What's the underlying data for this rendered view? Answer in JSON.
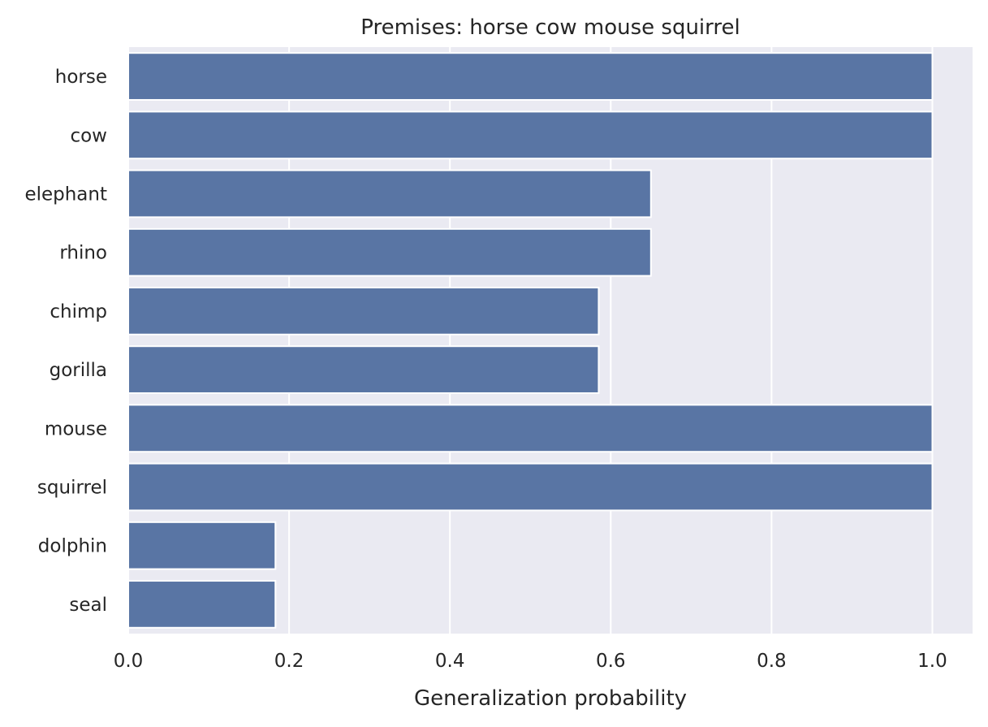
{
  "chart_data": {
    "type": "bar",
    "orientation": "horizontal",
    "title": "Premises: horse cow mouse squirrel",
    "xlabel": "Generalization probability",
    "ylabel": "",
    "categories": [
      "horse",
      "cow",
      "elephant",
      "rhino",
      "chimp",
      "gorilla",
      "mouse",
      "squirrel",
      "dolphin",
      "seal"
    ],
    "values": [
      1.0,
      1.0,
      0.65,
      0.65,
      0.585,
      0.585,
      1.0,
      1.0,
      0.183,
      0.183
    ],
    "xlim": [
      0,
      1.05
    ],
    "xticks": [
      "0.0",
      "0.2",
      "0.4",
      "0.6",
      "0.8",
      "1.0"
    ],
    "grid": true,
    "legend": "none",
    "colors": {
      "bar": "#5975a4",
      "bar_edge": "#ffffff",
      "plot_background": "#eaeaf2",
      "grid": "#ffffff",
      "text": "#262626"
    }
  }
}
